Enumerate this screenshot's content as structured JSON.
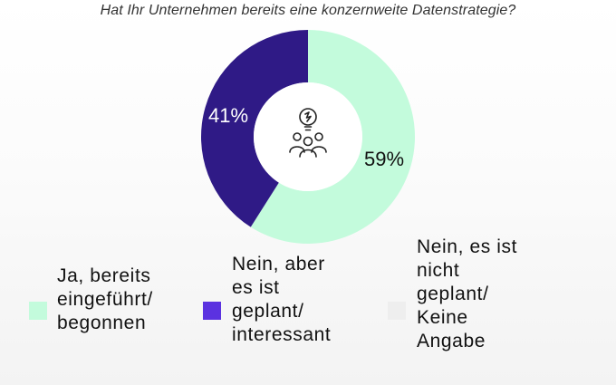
{
  "chart_data": {
    "type": "pie",
    "title": "Hat Ihr Unternehmen bereits eine konzernweite Datenstrategie?",
    "categories": [
      "Ja, bereits eingeführt/ begonnen",
      "Nein, aber es ist geplant/ interessant",
      "Nein, es ist nicht geplant/ Keine Angabe"
    ],
    "values": [
      59,
      41,
      0
    ],
    "data_labels": [
      "59%",
      "41%",
      ""
    ],
    "colors": [
      "#c3fbdc",
      "#2f1a86",
      "#ececec"
    ],
    "legend_position": "bottom",
    "donut": true,
    "center_icon": "team-lightbulb-icon"
  },
  "legend": {
    "items": [
      {
        "lines": [
          "Ja, bereits",
          "eingeführt/",
          "begonnen"
        ],
        "color": "#c3fbdc"
      },
      {
        "lines": [
          "Nein, aber",
          "es ist",
          "geplant/",
          "interessant"
        ],
        "color": "#5b32e0"
      },
      {
        "lines": [
          "Nein, es ist",
          "nicht",
          "geplant/",
          "Keine",
          "Angabe"
        ],
        "color": "#eeeeee"
      }
    ]
  }
}
